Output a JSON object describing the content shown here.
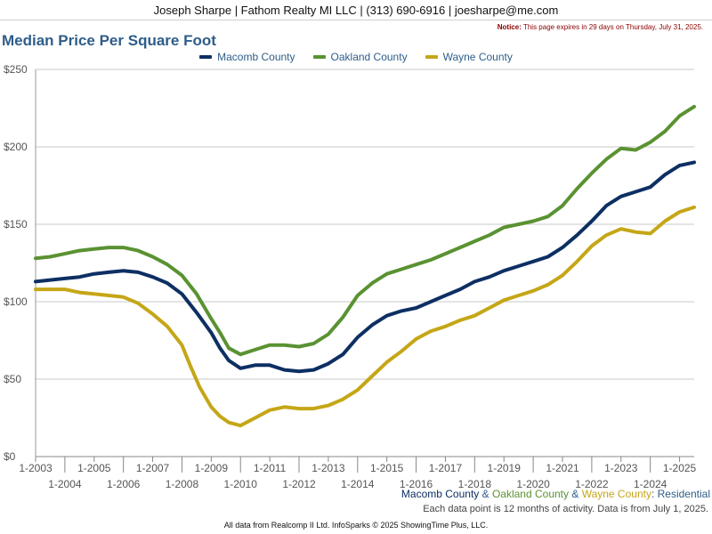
{
  "header": {
    "agent_line": "Joseph Sharpe | Fathom Realty MI LLC | (313) 690-6916 | joesharpe@me.com",
    "notice_label": "Notice:",
    "notice_text": "This page expires in 29 days on Thursday, July 31, 2025."
  },
  "colors": {
    "macomb": "#0d2f63",
    "oakland": "#5a9232",
    "wayne": "#c5a617",
    "title": "#2e5d8a",
    "grid": "#c8c8c8"
  },
  "caption": {
    "macomb": "Macomb County",
    "amp1": " & ",
    "oakland": "Oakland County",
    "amp2": " & ",
    "wayne": "Wayne County",
    "suffix": ": Residential",
    "note": "Each data point is 12 months of activity. Data is from July 1, 2025."
  },
  "footer": {
    "text": "All data from Realcomp II Ltd. InfoSparks © 2025 ShowingTime Plus, LLC."
  },
  "chart_data": {
    "type": "line",
    "title": "Median Price Per Square Foot",
    "ylim": [
      0,
      250
    ],
    "xlim": [
      2003.0,
      2025.5
    ],
    "y_ticks": [
      0,
      50,
      100,
      150,
      200,
      250
    ],
    "y_tick_labels": [
      "$0",
      "$50",
      "$100",
      "$150",
      "$200",
      "$250"
    ],
    "x_ticks": [
      2003,
      2004,
      2005,
      2006,
      2007,
      2008,
      2009,
      2010,
      2011,
      2012,
      2013,
      2014,
      2015,
      2016,
      2017,
      2018,
      2019,
      2020,
      2021,
      2022,
      2023,
      2024,
      2025
    ],
    "x_tick_labels": [
      "1-2003",
      "1-2004",
      "1-2005",
      "1-2006",
      "1-2007",
      "1-2008",
      "1-2009",
      "1-2010",
      "1-2011",
      "1-2012",
      "1-2013",
      "1-2014",
      "1-2015",
      "1-2016",
      "1-2017",
      "1-2018",
      "1-2019",
      "1-2020",
      "1-2021",
      "1-2022",
      "1-2023",
      "1-2024",
      "1-2025"
    ],
    "grid": true,
    "legend_position": "top-center",
    "series": [
      {
        "name": "Macomb County",
        "color_key": "macomb",
        "x": [
          2003.0,
          2003.5,
          2004.0,
          2004.5,
          2005.0,
          2005.5,
          2006.0,
          2006.5,
          2007.0,
          2007.5,
          2008.0,
          2008.5,
          2009.0,
          2009.3,
          2009.6,
          2010.0,
          2010.5,
          2011.0,
          2011.5,
          2012.0,
          2012.5,
          2013.0,
          2013.5,
          2014.0,
          2014.5,
          2015.0,
          2015.5,
          2016.0,
          2016.5,
          2017.0,
          2017.5,
          2018.0,
          2018.5,
          2019.0,
          2019.5,
          2020.0,
          2020.5,
          2021.0,
          2021.5,
          2022.0,
          2022.5,
          2023.0,
          2023.5,
          2024.0,
          2024.5,
          2025.0,
          2025.5
        ],
        "y": [
          113,
          114,
          115,
          116,
          118,
          119,
          120,
          119,
          116,
          112,
          105,
          93,
          80,
          70,
          62,
          57,
          59,
          59,
          56,
          55,
          56,
          60,
          66,
          77,
          85,
          91,
          94,
          96,
          100,
          104,
          108,
          113,
          116,
          120,
          123,
          126,
          129,
          135,
          143,
          152,
          162,
          168,
          171,
          174,
          182,
          188,
          190
        ]
      },
      {
        "name": "Oakland County",
        "color_key": "oakland",
        "x": [
          2003.0,
          2003.5,
          2004.0,
          2004.5,
          2005.0,
          2005.5,
          2006.0,
          2006.5,
          2007.0,
          2007.5,
          2008.0,
          2008.5,
          2009.0,
          2009.3,
          2009.6,
          2010.0,
          2010.5,
          2011.0,
          2011.5,
          2012.0,
          2012.5,
          2013.0,
          2013.5,
          2014.0,
          2014.5,
          2015.0,
          2015.5,
          2016.0,
          2016.5,
          2017.0,
          2017.5,
          2018.0,
          2018.5,
          2019.0,
          2019.5,
          2020.0,
          2020.5,
          2021.0,
          2021.5,
          2022.0,
          2022.5,
          2023.0,
          2023.5,
          2024.0,
          2024.5,
          2025.0,
          2025.5
        ],
        "y": [
          128,
          129,
          131,
          133,
          134,
          135,
          135,
          133,
          129,
          124,
          117,
          105,
          89,
          80,
          70,
          66,
          69,
          72,
          72,
          71,
          73,
          79,
          90,
          104,
          112,
          118,
          121,
          124,
          127,
          131,
          135,
          139,
          143,
          148,
          150,
          152,
          155,
          162,
          173,
          183,
          192,
          199,
          198,
          203,
          210,
          220,
          226
        ]
      },
      {
        "name": "Wayne County",
        "color_key": "wayne",
        "x": [
          2003.0,
          2003.5,
          2004.0,
          2004.5,
          2005.0,
          2005.5,
          2006.0,
          2006.5,
          2007.0,
          2007.5,
          2008.0,
          2008.3,
          2008.6,
          2009.0,
          2009.3,
          2009.6,
          2010.0,
          2010.5,
          2011.0,
          2011.5,
          2012.0,
          2012.5,
          2013.0,
          2013.5,
          2014.0,
          2014.5,
          2015.0,
          2015.5,
          2016.0,
          2016.5,
          2017.0,
          2017.5,
          2018.0,
          2018.5,
          2019.0,
          2019.5,
          2020.0,
          2020.5,
          2021.0,
          2021.5,
          2022.0,
          2022.5,
          2023.0,
          2023.5,
          2024.0,
          2024.5,
          2025.0,
          2025.5
        ],
        "y": [
          108,
          108,
          108,
          106,
          105,
          104,
          103,
          99,
          92,
          84,
          72,
          58,
          45,
          32,
          26,
          22,
          20,
          25,
          30,
          32,
          31,
          31,
          33,
          37,
          43,
          52,
          61,
          68,
          76,
          81,
          84,
          88,
          91,
          96,
          101,
          104,
          107,
          111,
          117,
          126,
          136,
          143,
          147,
          145,
          144,
          152,
          158,
          161
        ]
      }
    ]
  }
}
